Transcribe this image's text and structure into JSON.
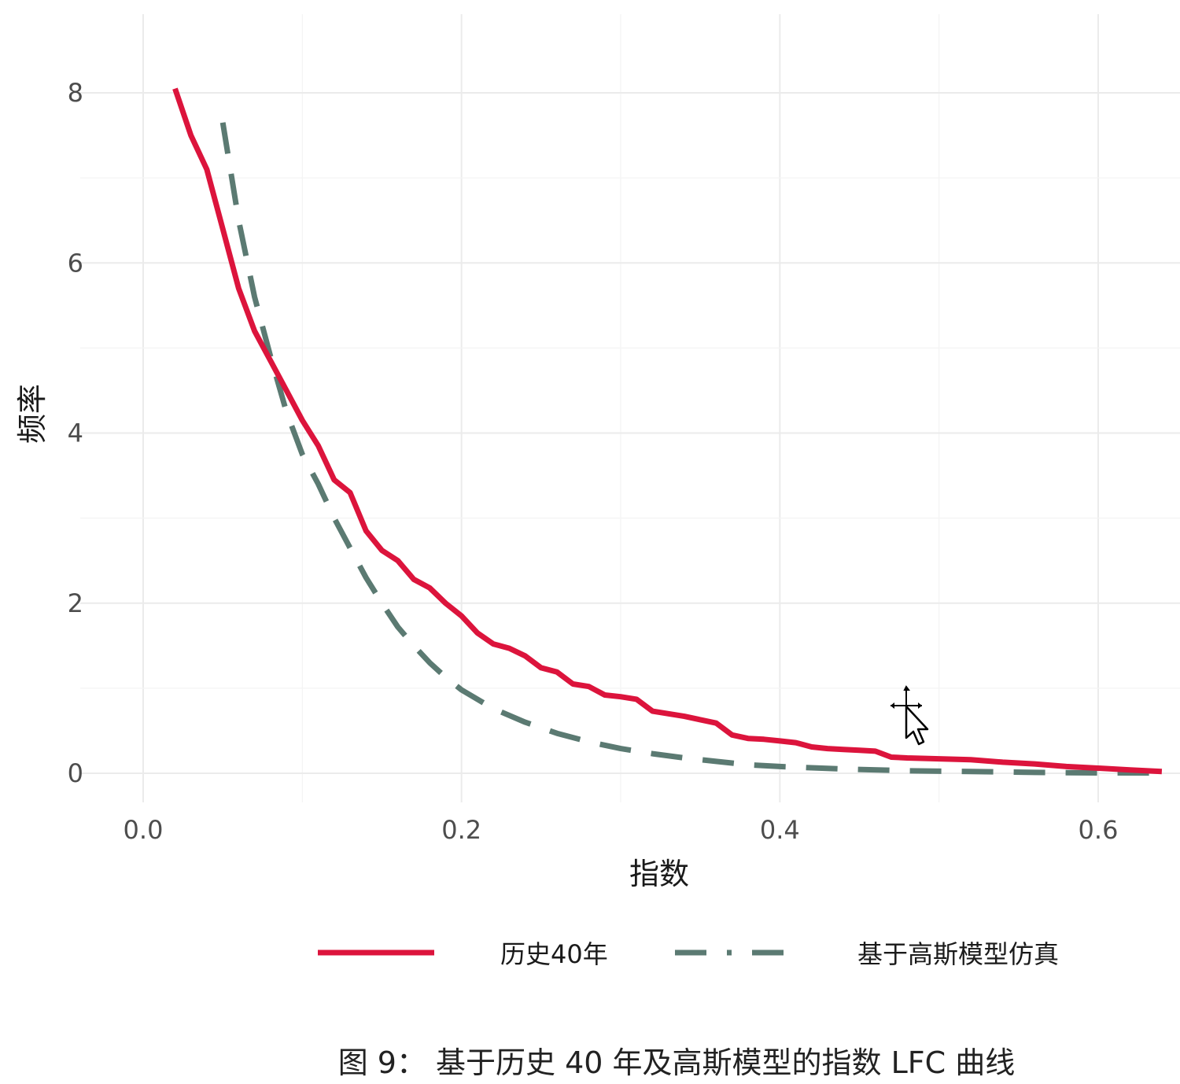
{
  "chart_data": {
    "type": "line",
    "title": "",
    "caption": "图 9： 基于历史 40 年及高斯模型的指数 LFC 曲线",
    "xlabel": "指数",
    "ylabel": "频率",
    "xlim": [
      -0.02,
      0.65
    ],
    "ylim": [
      -0.2,
      8.5
    ],
    "x_ticks": [
      0.0,
      0.2,
      0.4,
      0.6
    ],
    "x_tick_labels": [
      "0.0",
      "0.2",
      "0.4",
      "0.6"
    ],
    "y_ticks": [
      0,
      2,
      4,
      6,
      8
    ],
    "y_tick_labels": [
      "0",
      "2",
      "4",
      "6",
      "8"
    ],
    "grid": true,
    "legend_position": "bottom",
    "series": [
      {
        "name": "历史40年",
        "color": "#dc143c",
        "dash": "solid",
        "points": [
          [
            0.02,
            8.05
          ],
          [
            0.03,
            7.5
          ],
          [
            0.04,
            7.1
          ],
          [
            0.05,
            6.4
          ],
          [
            0.06,
            5.7
          ],
          [
            0.07,
            5.2
          ],
          [
            0.08,
            4.85
          ],
          [
            0.09,
            4.5
          ],
          [
            0.1,
            4.15
          ],
          [
            0.11,
            3.85
          ],
          [
            0.12,
            3.45
          ],
          [
            0.13,
            3.3
          ],
          [
            0.14,
            2.85
          ],
          [
            0.15,
            2.62
          ],
          [
            0.16,
            2.5
          ],
          [
            0.17,
            2.28
          ],
          [
            0.18,
            2.18
          ],
          [
            0.19,
            2.0
          ],
          [
            0.2,
            1.85
          ],
          [
            0.21,
            1.65
          ],
          [
            0.22,
            1.52
          ],
          [
            0.23,
            1.47
          ],
          [
            0.24,
            1.38
          ],
          [
            0.25,
            1.24
          ],
          [
            0.26,
            1.19
          ],
          [
            0.27,
            1.05
          ],
          [
            0.28,
            1.02
          ],
          [
            0.29,
            0.92
          ],
          [
            0.3,
            0.9
          ],
          [
            0.31,
            0.87
          ],
          [
            0.32,
            0.73
          ],
          [
            0.33,
            0.7
          ],
          [
            0.34,
            0.67
          ],
          [
            0.35,
            0.63
          ],
          [
            0.36,
            0.59
          ],
          [
            0.37,
            0.45
          ],
          [
            0.38,
            0.41
          ],
          [
            0.39,
            0.4
          ],
          [
            0.4,
            0.38
          ],
          [
            0.41,
            0.36
          ],
          [
            0.42,
            0.31
          ],
          [
            0.43,
            0.29
          ],
          [
            0.44,
            0.28
          ],
          [
            0.45,
            0.27
          ],
          [
            0.46,
            0.26
          ],
          [
            0.47,
            0.19
          ],
          [
            0.48,
            0.18
          ],
          [
            0.5,
            0.17
          ],
          [
            0.52,
            0.16
          ],
          [
            0.54,
            0.13
          ],
          [
            0.56,
            0.11
          ],
          [
            0.58,
            0.08
          ],
          [
            0.6,
            0.06
          ],
          [
            0.62,
            0.04
          ],
          [
            0.64,
            0.02
          ]
        ]
      },
      {
        "name": "基于高斯模型仿真",
        "color": "#5b7a72",
        "dash": "longdash",
        "points": [
          [
            0.05,
            7.65
          ],
          [
            0.06,
            6.5
          ],
          [
            0.07,
            5.6
          ],
          [
            0.08,
            4.9
          ],
          [
            0.09,
            4.25
          ],
          [
            0.1,
            3.75
          ],
          [
            0.11,
            3.4
          ],
          [
            0.12,
            3.0
          ],
          [
            0.13,
            2.65
          ],
          [
            0.14,
            2.3
          ],
          [
            0.15,
            2.0
          ],
          [
            0.16,
            1.72
          ],
          [
            0.17,
            1.5
          ],
          [
            0.18,
            1.3
          ],
          [
            0.19,
            1.13
          ],
          [
            0.2,
            0.98
          ],
          [
            0.22,
            0.76
          ],
          [
            0.24,
            0.6
          ],
          [
            0.26,
            0.47
          ],
          [
            0.28,
            0.37
          ],
          [
            0.3,
            0.29
          ],
          [
            0.32,
            0.23
          ],
          [
            0.34,
            0.18
          ],
          [
            0.36,
            0.14
          ],
          [
            0.38,
            0.1
          ],
          [
            0.4,
            0.08
          ],
          [
            0.44,
            0.05
          ],
          [
            0.48,
            0.03
          ],
          [
            0.52,
            0.02
          ],
          [
            0.56,
            0.01
          ],
          [
            0.6,
            0.005
          ],
          [
            0.64,
            0.003
          ]
        ]
      }
    ]
  }
}
